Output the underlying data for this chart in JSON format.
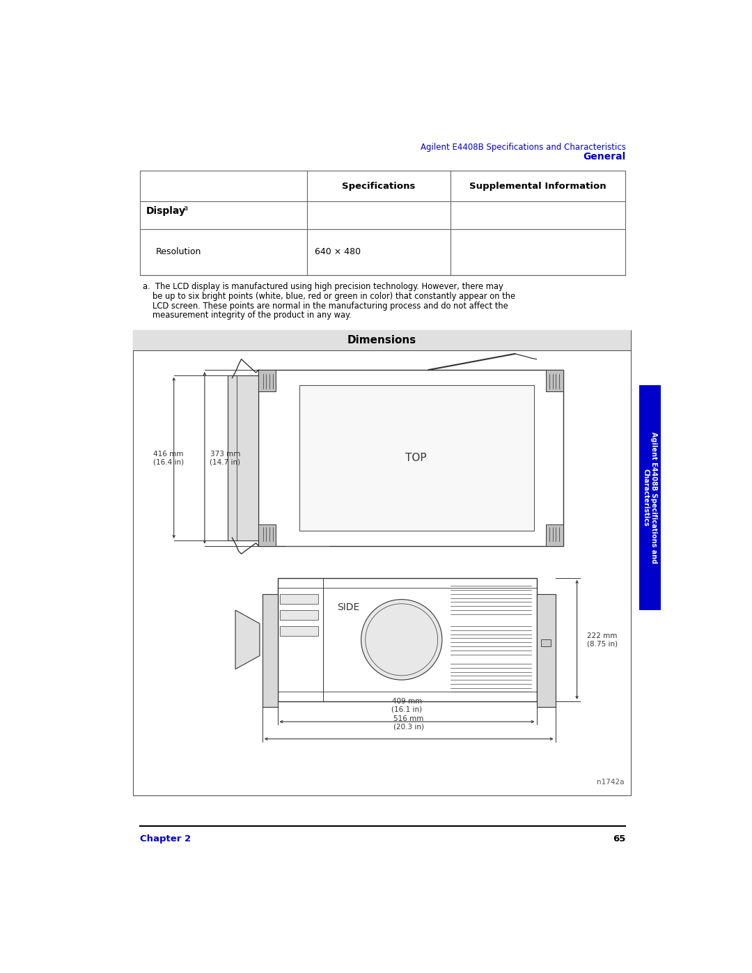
{
  "page_width": 10.8,
  "page_height": 13.97,
  "bg_color": "#ffffff",
  "header_title": "Agilent E4408B Specifications and Characteristics",
  "header_subtitle": "General",
  "header_color": "#0000cc",
  "table_col2_header": "Specifications",
  "table_col3_header": "Supplemental Information",
  "dimensions_title": "Dimensions",
  "dim_top_label": "TOP",
  "dim_side_label": "SIDE",
  "dim_watermark": "n1742a",
  "sidebar_text": "Agilent E4408B Specifications and\nCharacteristics",
  "sidebar_color": "#ffffff",
  "sidebar_bg": "#0000cd",
  "footer_chapter": "Chapter 2",
  "footer_page": "65",
  "footer_color": "#0000cc"
}
